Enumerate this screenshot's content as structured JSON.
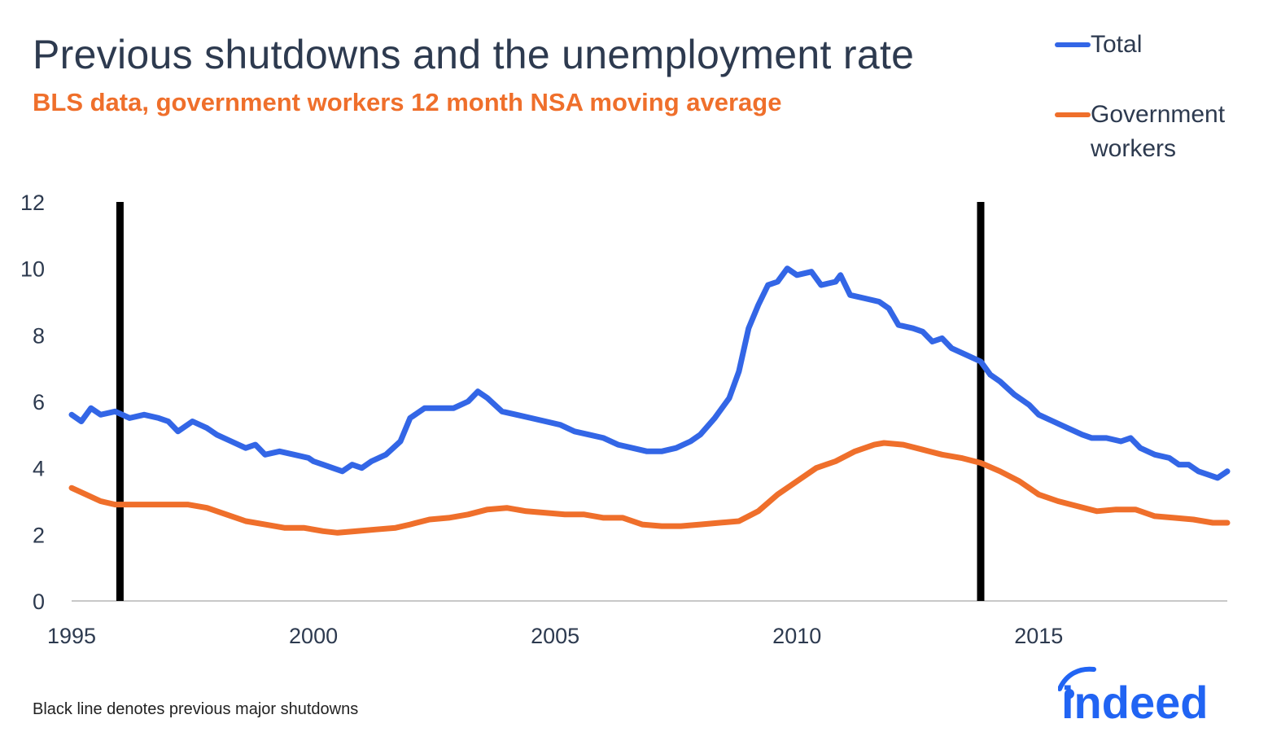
{
  "chart_data": {
    "type": "line",
    "title": "Previous shutdowns and the unemployment rate",
    "subtitle": "BLS data, government workers 12 month NSA moving average",
    "xlabel": "",
    "ylabel": "",
    "xlim": [
      1995,
      2018.9
    ],
    "ylim": [
      0,
      12
    ],
    "x_ticks": [
      "1995",
      "2000",
      "2005",
      "2010",
      "2015"
    ],
    "y_ticks": [
      "0",
      "2",
      "4",
      "6",
      "8",
      "10",
      "12"
    ],
    "grid": false,
    "legend_position": "top-right",
    "shutdown_lines": [
      1996.0,
      2013.8
    ],
    "series": [
      {
        "name": "Total",
        "color": "#3366e6",
        "points": [
          [
            1995.0,
            5.6
          ],
          [
            1995.2,
            5.4
          ],
          [
            1995.4,
            5.8
          ],
          [
            1995.6,
            5.6
          ],
          [
            1995.9,
            5.7
          ],
          [
            1996.2,
            5.5
          ],
          [
            1996.5,
            5.6
          ],
          [
            1996.8,
            5.5
          ],
          [
            1997.0,
            5.4
          ],
          [
            1997.2,
            5.1
          ],
          [
            1997.5,
            5.4
          ],
          [
            1997.8,
            5.2
          ],
          [
            1998.0,
            5.0
          ],
          [
            1998.3,
            4.8
          ],
          [
            1998.6,
            4.6
          ],
          [
            1998.8,
            4.7
          ],
          [
            1999.0,
            4.4
          ],
          [
            1999.3,
            4.5
          ],
          [
            1999.6,
            4.4
          ],
          [
            1999.9,
            4.3
          ],
          [
            2000.0,
            4.2
          ],
          [
            2000.2,
            4.1
          ],
          [
            2000.4,
            4.0
          ],
          [
            2000.6,
            3.9
          ],
          [
            2000.8,
            4.1
          ],
          [
            2001.0,
            4.0
          ],
          [
            2001.2,
            4.2
          ],
          [
            2001.5,
            4.4
          ],
          [
            2001.8,
            4.8
          ],
          [
            2002.0,
            5.5
          ],
          [
            2002.3,
            5.8
          ],
          [
            2002.6,
            5.8
          ],
          [
            2002.9,
            5.8
          ],
          [
            2003.2,
            6.0
          ],
          [
            2003.4,
            6.3
          ],
          [
            2003.6,
            6.1
          ],
          [
            2003.9,
            5.7
          ],
          [
            2004.2,
            5.6
          ],
          [
            2004.5,
            5.5
          ],
          [
            2004.8,
            5.4
          ],
          [
            2005.1,
            5.3
          ],
          [
            2005.4,
            5.1
          ],
          [
            2005.7,
            5.0
          ],
          [
            2006.0,
            4.9
          ],
          [
            2006.3,
            4.7
          ],
          [
            2006.6,
            4.6
          ],
          [
            2006.9,
            4.5
          ],
          [
            2007.2,
            4.5
          ],
          [
            2007.5,
            4.6
          ],
          [
            2007.8,
            4.8
          ],
          [
            2008.0,
            5.0
          ],
          [
            2008.3,
            5.5
          ],
          [
            2008.6,
            6.1
          ],
          [
            2008.8,
            6.9
          ],
          [
            2009.0,
            8.2
          ],
          [
            2009.2,
            8.9
          ],
          [
            2009.4,
            9.5
          ],
          [
            2009.6,
            9.6
          ],
          [
            2009.8,
            10.0
          ],
          [
            2010.0,
            9.8
          ],
          [
            2010.3,
            9.9
          ],
          [
            2010.5,
            9.5
          ],
          [
            2010.8,
            9.6
          ],
          [
            2010.9,
            9.8
          ],
          [
            2011.1,
            9.2
          ],
          [
            2011.4,
            9.1
          ],
          [
            2011.7,
            9.0
          ],
          [
            2011.9,
            8.8
          ],
          [
            2012.1,
            8.3
          ],
          [
            2012.4,
            8.2
          ],
          [
            2012.6,
            8.1
          ],
          [
            2012.8,
            7.8
          ],
          [
            2013.0,
            7.9
          ],
          [
            2013.2,
            7.6
          ],
          [
            2013.5,
            7.4
          ],
          [
            2013.8,
            7.2
          ],
          [
            2014.0,
            6.8
          ],
          [
            2014.2,
            6.6
          ],
          [
            2014.5,
            6.2
          ],
          [
            2014.8,
            5.9
          ],
          [
            2015.0,
            5.6
          ],
          [
            2015.3,
            5.4
          ],
          [
            2015.6,
            5.2
          ],
          [
            2015.9,
            5.0
          ],
          [
            2016.1,
            4.9
          ],
          [
            2016.4,
            4.9
          ],
          [
            2016.7,
            4.8
          ],
          [
            2016.9,
            4.9
          ],
          [
            2017.1,
            4.6
          ],
          [
            2017.4,
            4.4
          ],
          [
            2017.7,
            4.3
          ],
          [
            2017.9,
            4.1
          ],
          [
            2018.1,
            4.1
          ],
          [
            2018.3,
            3.9
          ],
          [
            2018.5,
            3.8
          ],
          [
            2018.7,
            3.7
          ],
          [
            2018.9,
            3.9
          ]
        ]
      },
      {
        "name": "Government workers",
        "color": "#ef6f2b",
        "points": [
          [
            1995.0,
            3.4
          ],
          [
            1995.3,
            3.2
          ],
          [
            1995.6,
            3.0
          ],
          [
            1995.9,
            2.9
          ],
          [
            1996.2,
            2.9
          ],
          [
            1996.6,
            2.9
          ],
          [
            1997.0,
            2.9
          ],
          [
            1997.4,
            2.9
          ],
          [
            1997.8,
            2.8
          ],
          [
            1998.2,
            2.6
          ],
          [
            1998.6,
            2.4
          ],
          [
            1999.0,
            2.3
          ],
          [
            1999.4,
            2.2
          ],
          [
            1999.8,
            2.2
          ],
          [
            2000.2,
            2.1
          ],
          [
            2000.5,
            2.05
          ],
          [
            2000.9,
            2.1
          ],
          [
            2001.3,
            2.15
          ],
          [
            2001.7,
            2.2
          ],
          [
            2002.0,
            2.3
          ],
          [
            2002.4,
            2.45
          ],
          [
            2002.8,
            2.5
          ],
          [
            2003.2,
            2.6
          ],
          [
            2003.6,
            2.75
          ],
          [
            2004.0,
            2.8
          ],
          [
            2004.4,
            2.7
          ],
          [
            2004.8,
            2.65
          ],
          [
            2005.2,
            2.6
          ],
          [
            2005.6,
            2.6
          ],
          [
            2006.0,
            2.5
          ],
          [
            2006.4,
            2.5
          ],
          [
            2006.8,
            2.3
          ],
          [
            2007.2,
            2.25
          ],
          [
            2007.6,
            2.25
          ],
          [
            2008.0,
            2.3
          ],
          [
            2008.4,
            2.35
          ],
          [
            2008.8,
            2.4
          ],
          [
            2009.2,
            2.7
          ],
          [
            2009.6,
            3.2
          ],
          [
            2010.0,
            3.6
          ],
          [
            2010.4,
            4.0
          ],
          [
            2010.8,
            4.2
          ],
          [
            2011.2,
            4.5
          ],
          [
            2011.6,
            4.7
          ],
          [
            2011.8,
            4.75
          ],
          [
            2012.2,
            4.7
          ],
          [
            2012.6,
            4.55
          ],
          [
            2013.0,
            4.4
          ],
          [
            2013.4,
            4.3
          ],
          [
            2013.8,
            4.15
          ],
          [
            2014.2,
            3.9
          ],
          [
            2014.6,
            3.6
          ],
          [
            2015.0,
            3.2
          ],
          [
            2015.4,
            3.0
          ],
          [
            2015.8,
            2.85
          ],
          [
            2016.2,
            2.7
          ],
          [
            2016.6,
            2.75
          ],
          [
            2017.0,
            2.75
          ],
          [
            2017.4,
            2.55
          ],
          [
            2017.8,
            2.5
          ],
          [
            2018.2,
            2.45
          ],
          [
            2018.6,
            2.35
          ],
          [
            2018.9,
            2.35
          ]
        ]
      }
    ],
    "annotations": [
      "Black line denotes previous major shutdowns"
    ]
  },
  "legend": {
    "total_label": "Total",
    "gov_label_line1": "Government",
    "gov_label_line2": "workers"
  },
  "footnote": "Black line denotes previous major shutdowns",
  "brand": {
    "name": "indeed",
    "color": "#2164f3"
  }
}
